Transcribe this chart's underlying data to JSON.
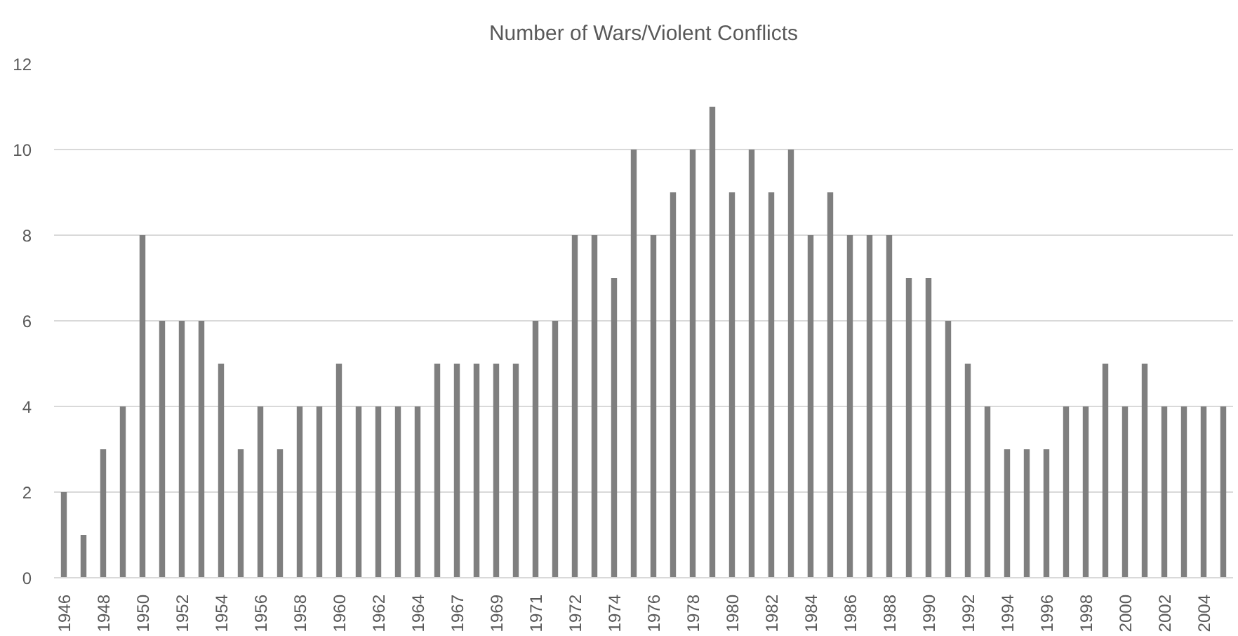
{
  "chart_data": {
    "type": "bar",
    "title": "Number of Wars/Violent Conflicts",
    "categories": [
      "1946",
      null,
      "1948",
      null,
      "1950",
      null,
      "1952",
      null,
      "1954",
      null,
      "1956",
      null,
      "1958",
      null,
      "1960",
      null,
      "1962",
      null,
      "1964",
      null,
      "1967",
      null,
      "1969",
      null,
      "1971",
      null,
      "1972",
      null,
      "1974",
      null,
      "1976",
      null,
      "1978",
      null,
      "1980",
      null,
      "1982",
      null,
      "1984",
      null,
      "1986",
      null,
      "1988",
      null,
      "1990",
      null,
      "1992",
      null,
      "1994",
      null,
      "1996",
      null,
      "1998",
      null,
      "2000",
      null,
      "2002",
      null,
      "2004",
      null
    ],
    "values": [
      2,
      1,
      3,
      4,
      8,
      6,
      6,
      6,
      5,
      3,
      4,
      3,
      4,
      4,
      5,
      4,
      4,
      4,
      4,
      5,
      5,
      5,
      5,
      5,
      6,
      6,
      8,
      8,
      7,
      10,
      8,
      9,
      10,
      11,
      9,
      10,
      9,
      10,
      8,
      9,
      8,
      8,
      8,
      7,
      7,
      6,
      5,
      4,
      3,
      3,
      3,
      4,
      4,
      5,
      4,
      5,
      4,
      4,
      4,
      4
    ],
    "color": "#7f7f7f",
    "ylim": [
      0,
      12
    ],
    "yticks": [
      0,
      2,
      4,
      6,
      8,
      10,
      12
    ],
    "grid": "y"
  }
}
